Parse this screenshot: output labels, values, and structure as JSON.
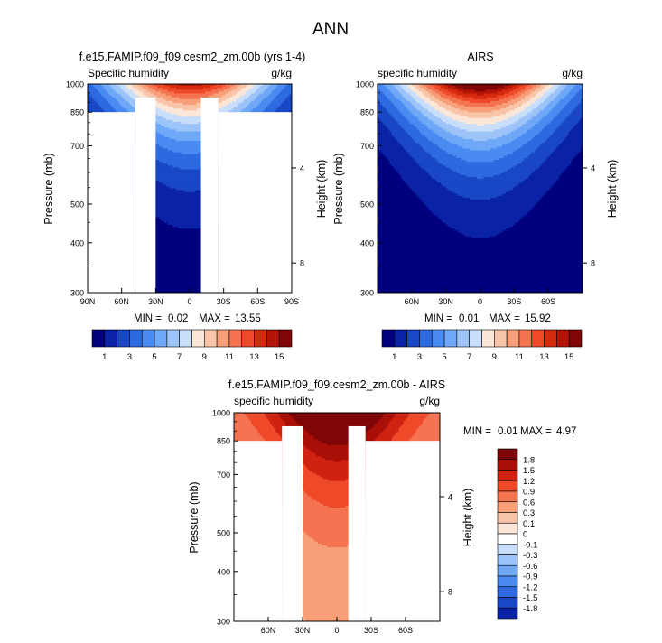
{
  "figure": {
    "title": "ANN"
  },
  "colors": {
    "cb_main": [
      "#00007f",
      "#0a23a6",
      "#1947c5",
      "#2d6ae0",
      "#4a8bf2",
      "#6fa8f7",
      "#9cc4f8",
      "#c9defa",
      "#fbe6d8",
      "#f9c5a8",
      "#f79f79",
      "#f47350",
      "#ee4a2a",
      "#d62a10",
      "#b21507",
      "#7e0606"
    ],
    "cb_diff": [
      "#7e0606",
      "#a80f07",
      "#cf2211",
      "#ee4a2a",
      "#f47350",
      "#f79f79",
      "#f9c5a8",
      "#fbe6d8",
      "#ffffff",
      "#c9defa",
      "#9cc4f8",
      "#6fa8f7",
      "#4a8bf2",
      "#2d6ae0",
      "#1947c5",
      "#0a23a6",
      "#00007f"
    ]
  },
  "chart_data": [
    {
      "type": "heatmap",
      "panel_title": "f.e15.FAMIP.f09_f09.cesm2_zm.00b (yrs 1-4)",
      "left_label": "Specific humidity",
      "right_label": "g/kg",
      "ylabel": "Pressure (mb)",
      "y2label": "Height (km)",
      "x_ticks": [
        "90N",
        "60N",
        "30N",
        "0",
        "30S",
        "60S",
        "90S"
      ],
      "x_range": [
        90,
        -90
      ],
      "y_ticks": [
        "300",
        "400",
        "500",
        "700",
        "850",
        "1000"
      ],
      "y2_ticks": [
        "8",
        "4"
      ],
      "min_label": "MIN =",
      "min_value": "0.02",
      "max_label": "MAX =",
      "max_value": "13.55",
      "peak_lat": 0,
      "peak_value": 13.55,
      "colorbar_labels": [
        "1",
        "3",
        "5",
        "7",
        "9",
        "11",
        "13",
        "15"
      ],
      "contour_levels": [
        1,
        2,
        3,
        4,
        5,
        6,
        7,
        8,
        9,
        10,
        11,
        12,
        13,
        14,
        15
      ]
    },
    {
      "type": "heatmap",
      "panel_title": "AIRS",
      "left_label": "specific humidity",
      "right_label": "g/kg",
      "ylabel": "Pressure (mb)",
      "y2label": "Height (km)",
      "x_ticks": [
        "60N",
        "30N",
        "0",
        "30S",
        "60S"
      ],
      "x_range": [
        90,
        -90
      ],
      "y_ticks": [
        "300",
        "400",
        "500",
        "700",
        "850",
        "1000"
      ],
      "y2_ticks": [
        "8",
        "4"
      ],
      "min_label": "MIN =",
      "min_value": "0.01",
      "max_label": "MAX =",
      "max_value": "15.92",
      "peak_lat": 0,
      "peak_value": 15.92,
      "colorbar_labels": [
        "1",
        "3",
        "5",
        "7",
        "9",
        "11",
        "13",
        "15"
      ],
      "contour_levels": [
        1,
        2,
        3,
        4,
        5,
        6,
        7,
        8,
        9,
        10,
        11,
        12,
        13,
        14,
        15
      ]
    },
    {
      "type": "heatmap",
      "panel_title": "f.e15.FAMIP.f09_f09.cesm2_zm.00b - AIRS",
      "left_label": "specific humidity",
      "right_label": "g/kg",
      "ylabel": "Pressure (mb)",
      "y2label": "Height (km)",
      "x_ticks": [
        "60N",
        "30N",
        "0",
        "30S",
        "60S"
      ],
      "x_range": [
        90,
        -90
      ],
      "y_ticks": [
        "300",
        "400",
        "500",
        "700",
        "850",
        "1000"
      ],
      "y2_ticks": [
        "8",
        "4"
      ],
      "min_label": "MIN =",
      "min_value": "0.01",
      "max_label": "MAX =",
      "max_value": "4.97",
      "colorbar_labels": [
        "1.8",
        "1.5",
        "1.2",
        "0.9",
        "0.6",
        "0.3",
        "0.1",
        "0",
        "-0.1",
        "-0.3",
        "-0.6",
        "-0.9",
        "-1.2",
        "-1.5",
        "-1.8"
      ],
      "contour_levels": [
        -1.8,
        -1.5,
        -1.2,
        -0.9,
        -0.6,
        -0.3,
        -0.1,
        0,
        0.1,
        0.3,
        0.6,
        0.9,
        1.2,
        1.5,
        1.8
      ]
    }
  ]
}
